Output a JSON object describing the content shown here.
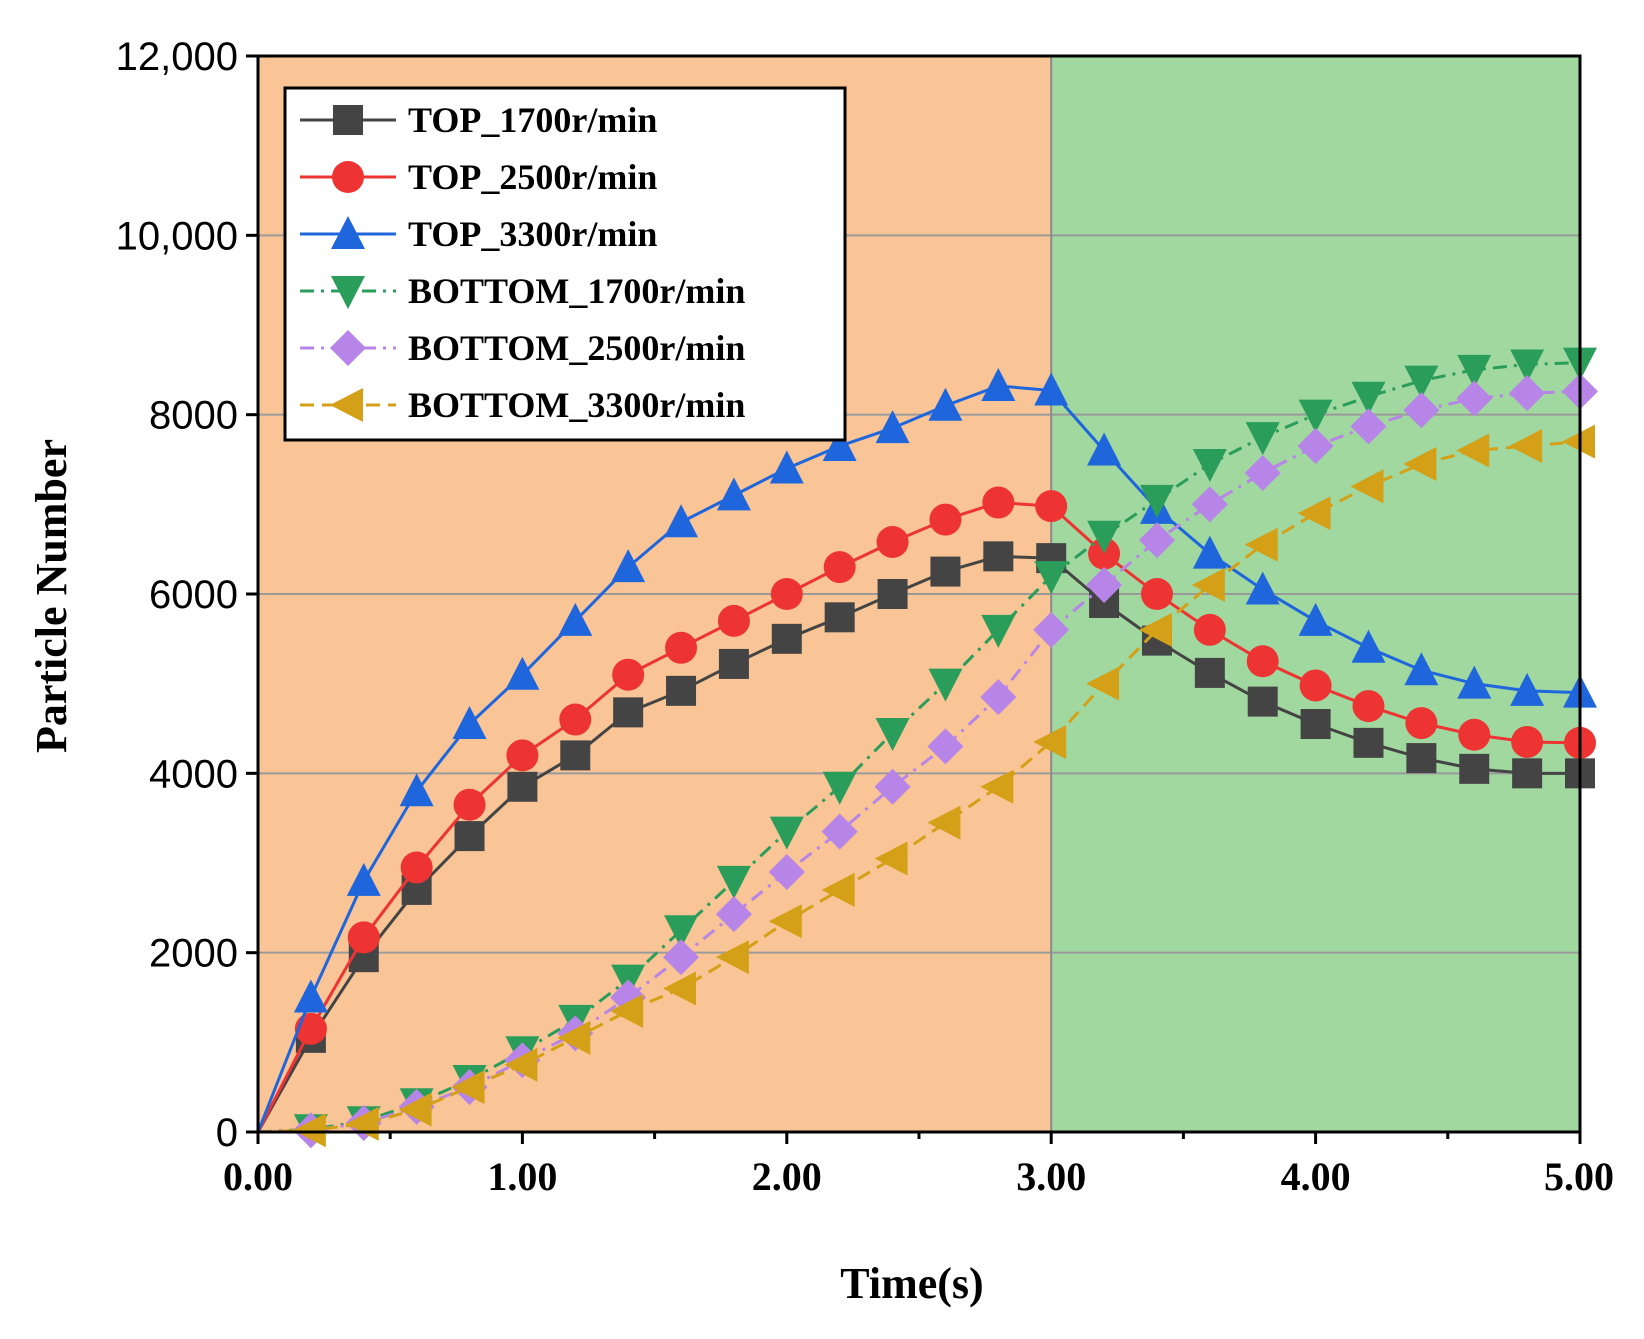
{
  "chart_data": {
    "type": "line",
    "title": "",
    "xlabel": "Time(s)",
    "ylabel": "Particle Number",
    "xlim": [
      0,
      5
    ],
    "ylim": [
      0,
      12000
    ],
    "x_ticks": [
      "0.00",
      "1.00",
      "2.00",
      "3.00",
      "4.00",
      "5.00"
    ],
    "y_ticks": [
      "0",
      "2000",
      "4000",
      "6000",
      "8000",
      "10,000",
      "12,000"
    ],
    "grid": "horizontal",
    "legend_position": "top-left",
    "regions": [
      {
        "x_start": 0,
        "x_end": 3,
        "color": "#f9c596"
      },
      {
        "x_start": 3,
        "x_end": 5,
        "color": "#a0d8a0"
      }
    ],
    "x": [
      0,
      0.2,
      0.4,
      0.6,
      0.8,
      1.0,
      1.2,
      1.4,
      1.6,
      1.8,
      2.0,
      2.2,
      2.4,
      2.6,
      2.8,
      3.0,
      3.2,
      3.4,
      3.6,
      3.8,
      4.0,
      4.2,
      4.4,
      4.6,
      4.8,
      5.0
    ],
    "series": [
      {
        "name": "TOP_1700r/min",
        "color": "#444444",
        "marker": "square",
        "dash": "solid",
        "values": [
          0,
          1050,
          1950,
          2700,
          3300,
          3850,
          4200,
          4680,
          4920,
          5220,
          5500,
          5740,
          6000,
          6250,
          6420,
          6400,
          5900,
          5480,
          5120,
          4800,
          4550,
          4340,
          4170,
          4050,
          4000,
          4000
        ]
      },
      {
        "name": "TOP_2500r/min",
        "color": "#ee3333",
        "marker": "circle",
        "dash": "solid",
        "values": [
          0,
          1150,
          2170,
          2950,
          3650,
          4200,
          4600,
          5100,
          5400,
          5700,
          6000,
          6300,
          6580,
          6830,
          7020,
          6980,
          6450,
          6000,
          5600,
          5250,
          4980,
          4750,
          4560,
          4430,
          4350,
          4340
        ]
      },
      {
        "name": "TOP_3300r/min",
        "color": "#1f66dd",
        "marker": "triangle-up",
        "dash": "solid",
        "values": [
          0,
          1500,
          2800,
          3800,
          4550,
          5100,
          5700,
          6300,
          6800,
          7100,
          7400,
          7650,
          7850,
          8100,
          8320,
          8270,
          7600,
          6950,
          6450,
          6050,
          5700,
          5400,
          5150,
          5000,
          4920,
          4900
        ]
      },
      {
        "name": "BOTTOM_1700r/min",
        "color": "#2a9d5a",
        "marker": "triangle-down",
        "dash": "dash-dot",
        "values": [
          0,
          30,
          120,
          320,
          580,
          900,
          1250,
          1700,
          2250,
          2800,
          3350,
          3850,
          4450,
          5000,
          5600,
          6200,
          6650,
          7050,
          7450,
          7750,
          8000,
          8200,
          8380,
          8500,
          8560,
          8580
        ]
      },
      {
        "name": "BOTTOM_2500r/min",
        "color": "#b784e8",
        "marker": "diamond",
        "dash": "dash-dot",
        "values": [
          0,
          20,
          100,
          280,
          500,
          800,
          1100,
          1500,
          1950,
          2430,
          2900,
          3350,
          3850,
          4300,
          4850,
          5600,
          6100,
          6600,
          7000,
          7350,
          7650,
          7870,
          8050,
          8180,
          8240,
          8260
        ]
      },
      {
        "name": "BOTTOM_3300r/min",
        "color": "#d4a017",
        "marker": "triangle-left",
        "dash": "dash",
        "values": [
          0,
          20,
          90,
          250,
          500,
          750,
          1050,
          1350,
          1600,
          1950,
          2350,
          2700,
          3050,
          3450,
          3850,
          4350,
          5000,
          5600,
          6100,
          6550,
          6900,
          7200,
          7450,
          7600,
          7650,
          7700
        ]
      }
    ]
  }
}
